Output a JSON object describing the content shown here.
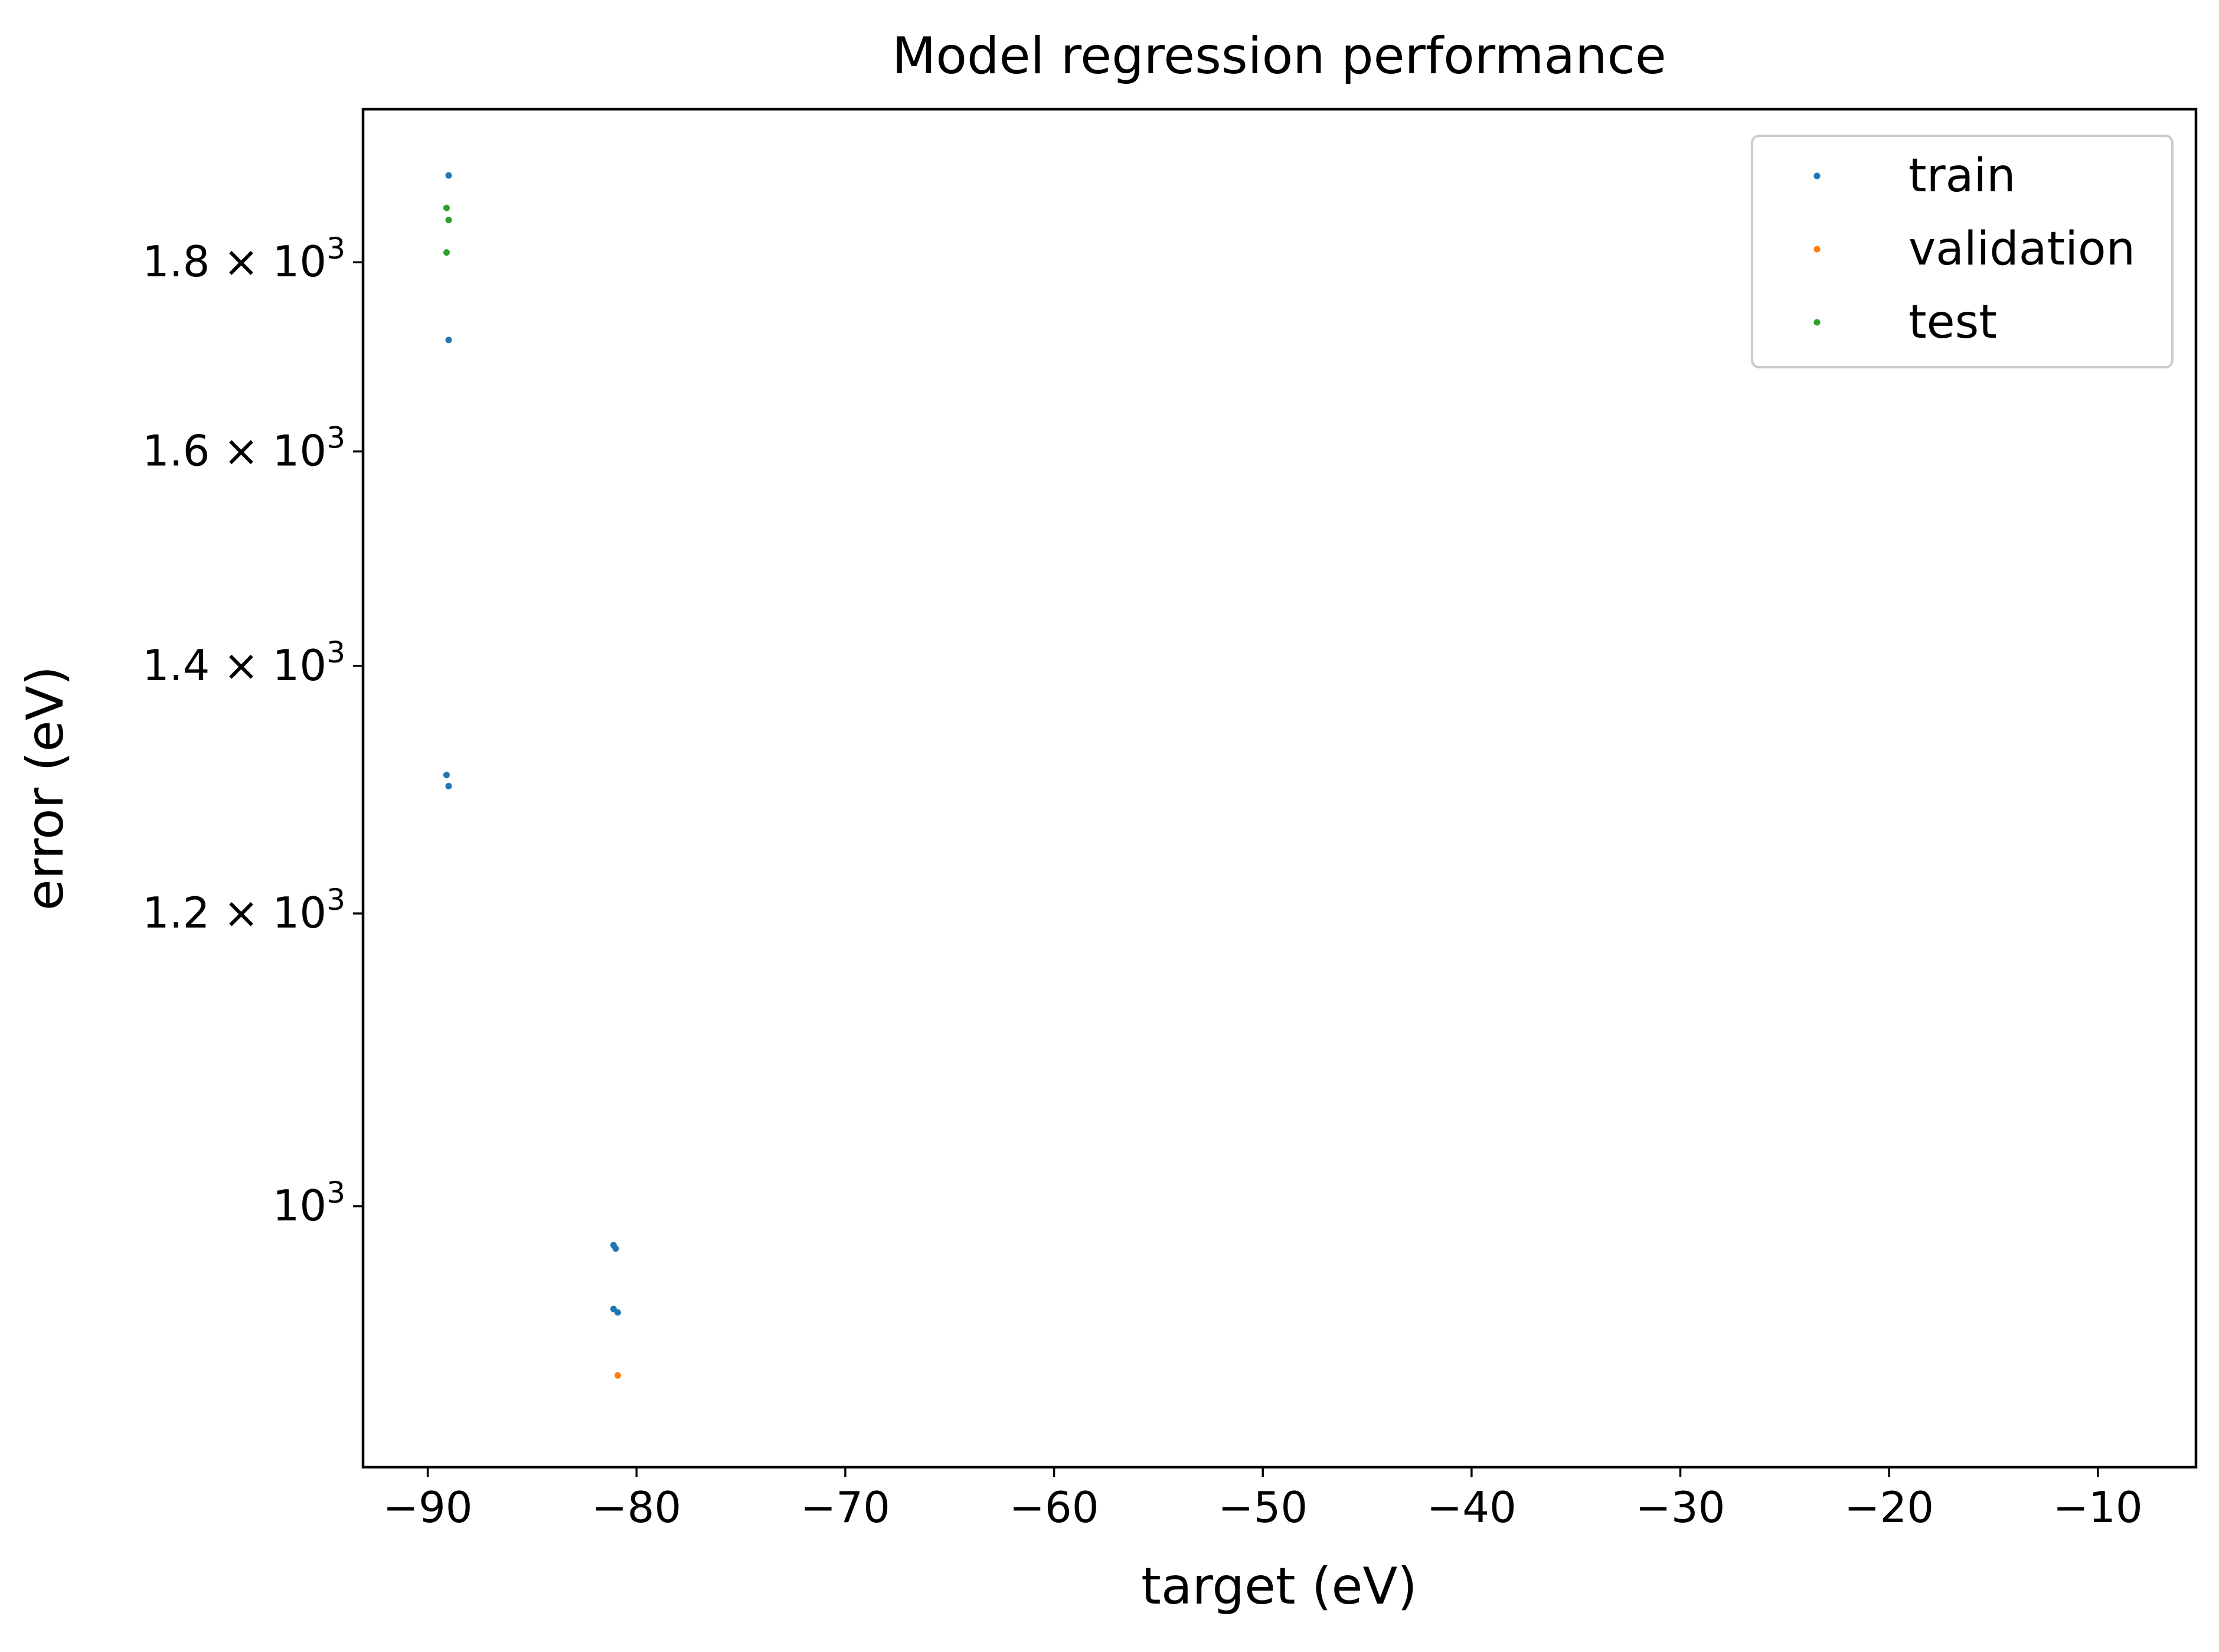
{
  "chart_data": {
    "type": "scatter",
    "title": "Model regression performance",
    "xlabel": "target (eV)",
    "ylabel": "error (eV)",
    "xlim": [
      -93.1,
      -5.3
    ],
    "ylim": [
      850,
      1980
    ],
    "yscale": "log",
    "grid": false,
    "legend_position": "top-right",
    "xticks": [
      {
        "value": -90,
        "label": "−90"
      },
      {
        "value": -80,
        "label": "−80"
      },
      {
        "value": -70,
        "label": "−70"
      },
      {
        "value": -60,
        "label": "−60"
      },
      {
        "value": -50,
        "label": "−50"
      },
      {
        "value": -40,
        "label": "−40"
      },
      {
        "value": -30,
        "label": "−30"
      },
      {
        "value": -20,
        "label": "−20"
      },
      {
        "value": -10,
        "label": "−10"
      }
    ],
    "yticks": [
      {
        "value": 1000,
        "mantissa": "",
        "exp": "3"
      },
      {
        "value": 1200,
        "mantissa": "1.2 × ",
        "exp": "3"
      },
      {
        "value": 1400,
        "mantissa": "1.4 × ",
        "exp": "3"
      },
      {
        "value": 1600,
        "mantissa": "1.6 × ",
        "exp": "3"
      },
      {
        "value": 1800,
        "mantissa": "1.8 × ",
        "exp": "3"
      }
    ],
    "series": [
      {
        "name": "train",
        "color": "#1f77b4",
        "points": [
          {
            "x": -89.0,
            "y": 1900
          },
          {
            "x": -89.0,
            "y": 1715
          },
          {
            "x": -89.1,
            "y": 1308
          },
          {
            "x": -89.0,
            "y": 1299
          },
          {
            "x": -81.1,
            "y": 976
          },
          {
            "x": -81.0,
            "y": 974
          },
          {
            "x": -81.1,
            "y": 938
          },
          {
            "x": -80.9,
            "y": 936
          }
        ]
      },
      {
        "name": "validation",
        "color": "#ff7f0e",
        "points": [
          {
            "x": -80.9,
            "y": 900
          }
        ]
      },
      {
        "name": "test",
        "color": "#2ca02c",
        "points": [
          {
            "x": -89.1,
            "y": 1862
          },
          {
            "x": -89.0,
            "y": 1848
          },
          {
            "x": -89.1,
            "y": 1811
          }
        ]
      }
    ]
  }
}
